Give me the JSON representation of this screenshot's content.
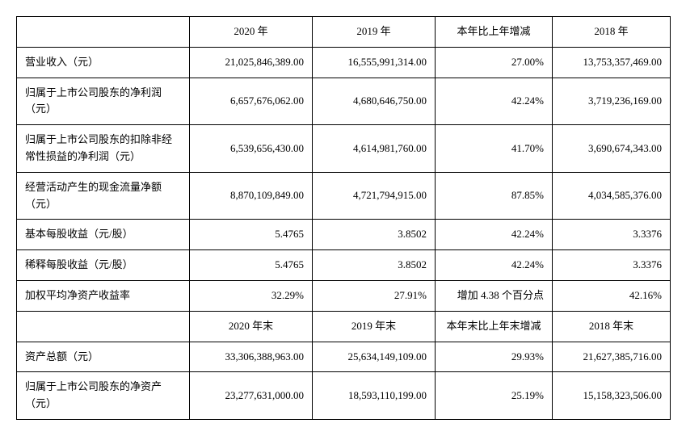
{
  "headers1": {
    "blank": "",
    "y2020": "2020 年",
    "y2019": "2019 年",
    "change": "本年比上年增减",
    "y2018": "2018 年"
  },
  "rows1": [
    {
      "label": "营业收入（元）",
      "v2020": "21,025,846,389.00",
      "v2019": "16,555,991,314.00",
      "change": "27.00%",
      "v2018": "13,753,357,469.00"
    },
    {
      "label": "归属于上市公司股东的净利润（元）",
      "v2020": "6,657,676,062.00",
      "v2019": "4,680,646,750.00",
      "change": "42.24%",
      "v2018": "3,719,236,169.00"
    },
    {
      "label": "归属于上市公司股东的扣除非经常性损益的净利润（元）",
      "v2020": "6,539,656,430.00",
      "v2019": "4,614,981,760.00",
      "change": "41.70%",
      "v2018": "3,690,674,343.00"
    },
    {
      "label": "经营活动产生的现金流量净额（元）",
      "v2020": "8,870,109,849.00",
      "v2019": "4,721,794,915.00",
      "change": "87.85%",
      "v2018": "4,034,585,376.00"
    },
    {
      "label": "基本每股收益（元/股）",
      "v2020": "5.4765",
      "v2019": "3.8502",
      "change": "42.24%",
      "v2018": "3.3376"
    },
    {
      "label": "稀释每股收益（元/股）",
      "v2020": "5.4765",
      "v2019": "3.8502",
      "change": "42.24%",
      "v2018": "3.3376"
    },
    {
      "label": "加权平均净资产收益率",
      "v2020": "32.29%",
      "v2019": "27.91%",
      "change": "增加 4.38 个百分点",
      "v2018": "42.16%"
    }
  ],
  "headers2": {
    "blank": "",
    "y2020": "2020 年末",
    "y2019": "2019 年末",
    "change": "本年末比上年末增减",
    "y2018": "2018 年末"
  },
  "rows2": [
    {
      "label": "资产总额（元）",
      "v2020": "33,306,388,963.00",
      "v2019": "25,634,149,109.00",
      "change": "29.93%",
      "v2018": "21,627,385,716.00"
    },
    {
      "label": "归属于上市公司股东的净资产（元）",
      "v2020": "23,277,631,000.00",
      "v2019": "18,593,110,199.00",
      "change": "25.19%",
      "v2018": "15,158,323,506.00"
    }
  ]
}
